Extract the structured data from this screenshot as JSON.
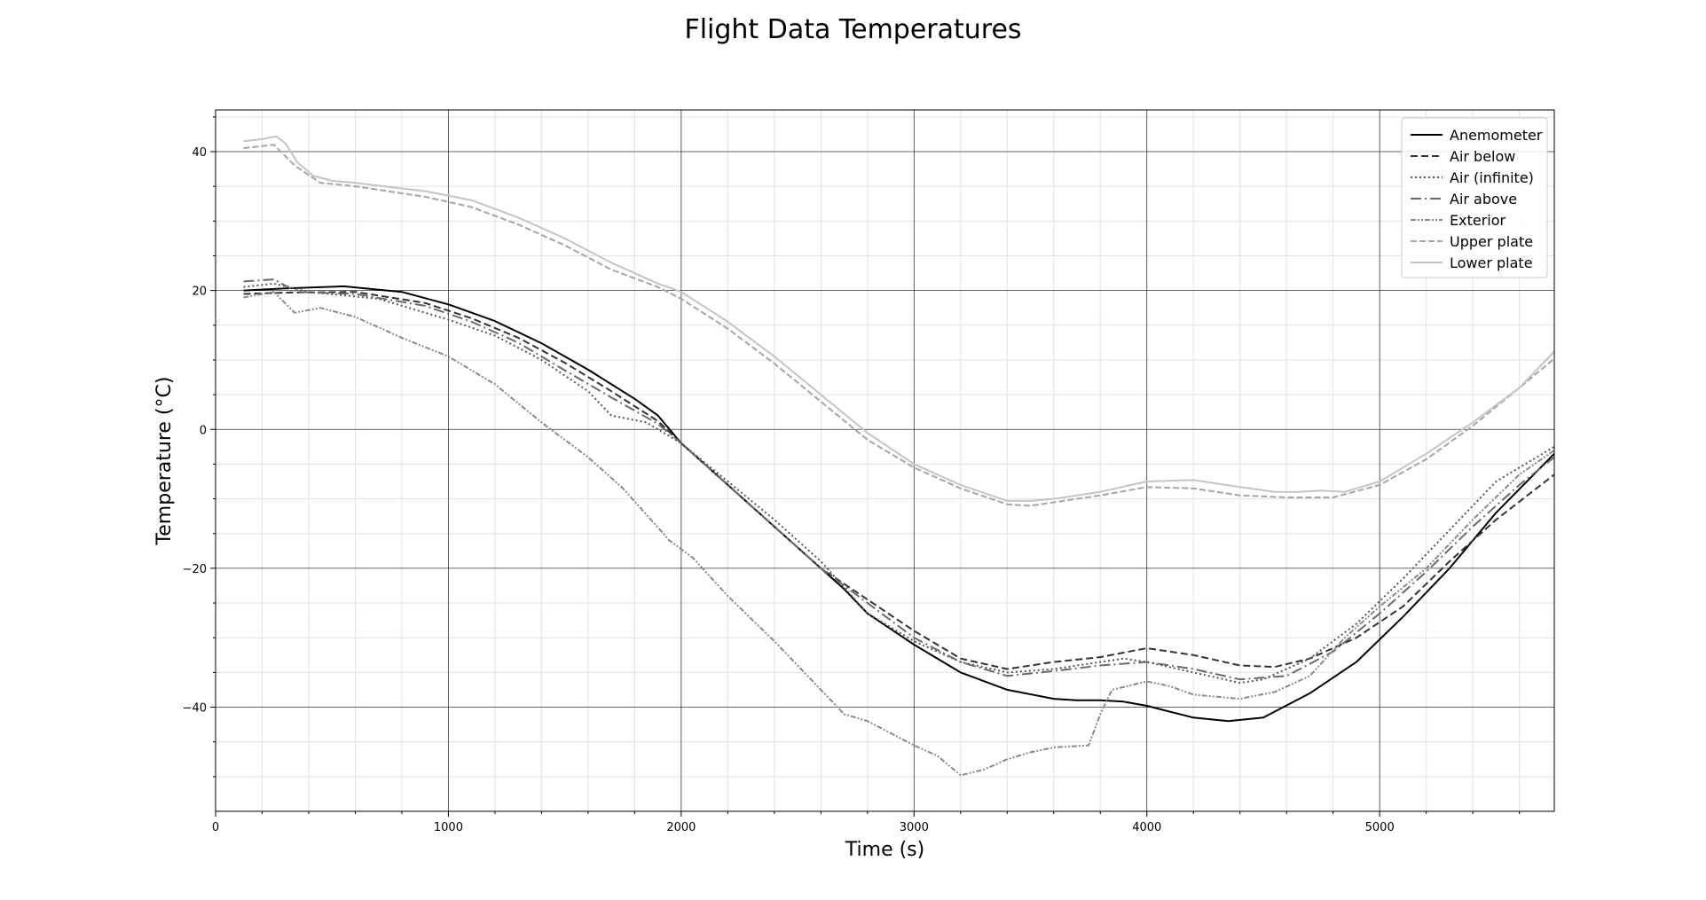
{
  "chart_data": {
    "type": "line",
    "title": "Flight Data Temperatures",
    "xlabel": "Time (s)",
    "ylabel": "Temperature (°C)",
    "xlim": [
      0,
      5750
    ],
    "ylim": [
      -55,
      46
    ],
    "xticks": [
      0,
      1000,
      2000,
      3000,
      4000,
      5000
    ],
    "yticks": [
      -40,
      -20,
      0,
      20,
      40
    ],
    "grid": true,
    "legend_position": "top-right",
    "series": [
      {
        "name": "Anemometer",
        "color": "#000000",
        "dash": "solid",
        "x": [
          120,
          300,
          550,
          800,
          1000,
          1200,
          1400,
          1600,
          1800,
          1900,
          2000,
          2200,
          2400,
          2600,
          2700,
          2800,
          3000,
          3200,
          3400,
          3600,
          3700,
          3800,
          3900,
          4000,
          4200,
          4350,
          4500,
          4700,
          4900,
          5100,
          5300,
          5500,
          5750
        ],
        "y": [
          20,
          20.3,
          20.6,
          19.8,
          18,
          15.6,
          12.4,
          8.6,
          4.4,
          2,
          -2,
          -8,
          -14,
          -20,
          -23,
          -26.5,
          -31,
          -35,
          -37.5,
          -38.8,
          -39,
          -39,
          -39.2,
          -39.8,
          -41.5,
          -42,
          -41.5,
          -38,
          -33.5,
          -27,
          -20,
          -12,
          -3.5
        ]
      },
      {
        "name": "Air below",
        "color": "#333333",
        "dash": "8,4",
        "x": [
          120,
          300,
          600,
          900,
          1100,
          1300,
          1500,
          1700,
          1900,
          2000,
          2200,
          2400,
          2600,
          2800,
          3000,
          3200,
          3400,
          3600,
          3800,
          4000,
          4200,
          4400,
          4550,
          4700,
          4900,
          5100,
          5300,
          5500,
          5750
        ],
        "y": [
          19.5,
          19.7,
          19.8,
          18.2,
          16,
          13.2,
          9.6,
          5.5,
          1.2,
          -2,
          -8,
          -14,
          -20,
          -24.5,
          -29,
          -33,
          -34.5,
          -33.5,
          -32.8,
          -31.5,
          -32.5,
          -34,
          -34.2,
          -33,
          -30,
          -25.5,
          -19,
          -13,
          -6.5
        ]
      },
      {
        "name": "Air (infinite)",
        "color": "#555555",
        "dash": "2,3",
        "x": [
          120,
          250,
          400,
          700,
          1000,
          1200,
          1400,
          1600,
          1700,
          1850,
          2000,
          2200,
          2400,
          2600,
          2800,
          3000,
          3200,
          3400,
          3600,
          3800,
          3900,
          4000,
          4200,
          4400,
          4500,
          4700,
          4900,
          5100,
          5300,
          5500,
          5750
        ],
        "y": [
          20.5,
          21,
          19.8,
          18.8,
          15.8,
          13.5,
          10,
          5.5,
          2,
          1,
          -2,
          -7.5,
          -13,
          -19,
          -26.5,
          -30.5,
          -33.5,
          -35,
          -34.5,
          -33.5,
          -33,
          -33.5,
          -35,
          -36.5,
          -36,
          -33,
          -28,
          -21.5,
          -14.5,
          -7.5,
          -2.5
        ]
      },
      {
        "name": "Air above",
        "color": "#6a6a6a",
        "dash": "12,4,2,4",
        "x": [
          120,
          250,
          350,
          600,
          900,
          1100,
          1300,
          1500,
          1700,
          1900,
          2000,
          2200,
          2400,
          2600,
          2800,
          3000,
          3200,
          3400,
          3600,
          3800,
          4000,
          4200,
          4400,
          4600,
          4800,
          5000,
          5200,
          5400,
          5600,
          5750
        ],
        "y": [
          21.3,
          21.6,
          19.8,
          19.5,
          17.8,
          15.5,
          12.5,
          8.5,
          4.6,
          0.8,
          -2,
          -8,
          -14,
          -20,
          -25,
          -30,
          -33.5,
          -35.5,
          -34.8,
          -34,
          -33.5,
          -34.5,
          -36,
          -35.5,
          -32,
          -26.5,
          -20.5,
          -14,
          -8,
          -4
        ]
      },
      {
        "name": "Exterior",
        "color": "#8a8a8a",
        "dash": "6,2,2,2,2,2",
        "x": [
          120,
          250,
          340,
          450,
          600,
          800,
          1000,
          1200,
          1400,
          1600,
          1750,
          1950,
          2050,
          2200,
          2400,
          2600,
          2700,
          2800,
          3000,
          3100,
          3200,
          3300,
          3400,
          3500,
          3600,
          3750,
          3800,
          3850,
          4000,
          4100,
          4200,
          4300,
          4400,
          4550,
          4700,
          4850,
          5000,
          5200,
          5400,
          5600,
          5750
        ],
        "y": [
          19,
          19.8,
          16.8,
          17.5,
          16.2,
          13.2,
          10.5,
          6.5,
          1,
          -4,
          -8.5,
          -16,
          -18.5,
          -24,
          -30.5,
          -37.5,
          -41,
          -42,
          -45.5,
          -47,
          -49.8,
          -49,
          -47.5,
          -46.5,
          -45.8,
          -45.5,
          -41,
          -37.5,
          -36.3,
          -37,
          -38.2,
          -38.5,
          -38.8,
          -37.8,
          -35.5,
          -30,
          -25.5,
          -20,
          -13,
          -6.5,
          -3
        ]
      },
      {
        "name": "Upper plate",
        "color": "#a6a6a6",
        "dash": "7,3",
        "x": [
          120,
          250,
          340,
          450,
          600,
          900,
          1100,
          1300,
          1500,
          1700,
          1900,
          2000,
          2200,
          2400,
          2600,
          2800,
          3000,
          3200,
          3400,
          3500,
          3600,
          3800,
          4000,
          4200,
          4400,
          4600,
          4800,
          5000,
          5200,
          5400,
          5600,
          5750
        ],
        "y": [
          40.5,
          41,
          38,
          35.5,
          35,
          33.5,
          32,
          29.5,
          26.5,
          23,
          20.5,
          18.8,
          14.5,
          9.5,
          4,
          -1.5,
          -5.5,
          -8.5,
          -10.8,
          -11,
          -10.5,
          -9.5,
          -8.3,
          -8.5,
          -9.5,
          -9.8,
          -9.8,
          -8,
          -4.3,
          0.5,
          6,
          10.2
        ]
      },
      {
        "name": "Lower plate",
        "color": "#c4c4c4",
        "dash": "solid",
        "x": [
          120,
          200,
          260,
          300,
          350,
          420,
          500,
          600,
          900,
          1100,
          1300,
          1500,
          1700,
          1900,
          2000,
          2200,
          2400,
          2600,
          2800,
          3000,
          3200,
          3400,
          3500,
          3600,
          3800,
          4000,
          4200,
          4400,
          4550,
          4650,
          4750,
          4850,
          5000,
          5200,
          5400,
          5600,
          5750
        ],
        "y": [
          41.5,
          41.8,
          42.2,
          41.2,
          38.5,
          36.5,
          35.8,
          35.5,
          34.3,
          33,
          30.5,
          27.5,
          24,
          21,
          19.8,
          15.5,
          10.5,
          5,
          -0.5,
          -5,
          -8,
          -10.3,
          -10.3,
          -10,
          -9,
          -7.5,
          -7.3,
          -8.3,
          -9,
          -9,
          -8.8,
          -9,
          -7.5,
          -3.5,
          1,
          6,
          11.2
        ]
      }
    ]
  }
}
